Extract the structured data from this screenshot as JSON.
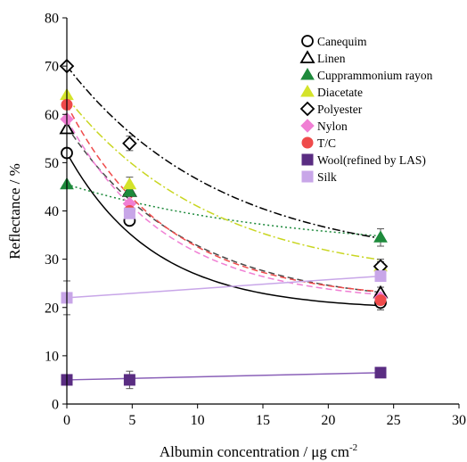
{
  "chart_data": {
    "type": "scatter",
    "xlabel": "Albumin concentration / μg cm",
    "xlabel_sup": "-2",
    "ylabel": "Reflectance / %",
    "xlim": [
      0,
      30
    ],
    "ylim": [
      0,
      80
    ],
    "xticks": [
      0,
      5,
      10,
      15,
      20,
      25,
      30
    ],
    "yticks": [
      0,
      10,
      20,
      30,
      40,
      50,
      60,
      70,
      80
    ],
    "grid": false,
    "legend_position": "top-right",
    "x": [
      0,
      4.8,
      24
    ],
    "series": [
      {
        "name": "Canequim",
        "values": [
          52,
          38,
          21
        ],
        "err": [
          0,
          0,
          1.5
        ],
        "marker": "open-circle",
        "color": "#000000",
        "line_color": "#000000",
        "line_style": "solid",
        "curve": [
          52,
          0.15,
          19.5
        ]
      },
      {
        "name": "Linen",
        "values": [
          57,
          44,
          23
        ],
        "err": [
          0,
          0,
          1.2
        ],
        "marker": "open-triangle",
        "color": "#000000",
        "line_color": "#4a4a4a",
        "line_style": "dashed",
        "curve": [
          57.5,
          0.11,
          20.5
        ]
      },
      {
        "name": "Cupprammonium rayon",
        "values": [
          45.5,
          44,
          34.5
        ],
        "err": [
          0,
          0,
          1.8
        ],
        "marker": "filled-triangle",
        "color": "#1e8a3c",
        "line_color": "#1e8a3c",
        "line_style": "dotted",
        "curve": [
          45.5,
          0.06,
          31.5
        ]
      },
      {
        "name": "Diacetate",
        "values": [
          64,
          45.5,
          28.5
        ],
        "err": [
          0,
          1.5,
          1.0
        ],
        "marker": "filled-triangle",
        "color": "#d4e32a",
        "line_color": "#c9d622",
        "line_style": "dashdot",
        "curve": [
          63.5,
          0.09,
          25.5
        ]
      },
      {
        "name": "Polyester",
        "values": [
          70,
          54,
          28.5
        ],
        "err": [
          0,
          1.5,
          1.5
        ],
        "marker": "open-diamond",
        "color": "#000000",
        "line_color": "#000000",
        "line_style": "dashdot",
        "curve": [
          70,
          0.085,
          29
        ]
      },
      {
        "name": "Nylon",
        "values": [
          59,
          41.5,
          22
        ],
        "err": [
          0,
          0,
          1.0
        ],
        "marker": "filled-diamond",
        "color": "#f07fd4",
        "line_color": "#f07fd4",
        "line_style": "dashed",
        "curve": [
          59,
          0.13,
          21
        ]
      },
      {
        "name": "T/C",
        "values": [
          62,
          40,
          21.5
        ],
        "err": [
          0,
          0,
          1.0
        ],
        "marker": "filled-circle",
        "color": "#ef4b4b",
        "line_color": "#ef4b4b",
        "line_style": "dashed",
        "curve": [
          62,
          0.13,
          21.5
        ]
      },
      {
        "name": "Wool(refined by LAS)",
        "values": [
          5,
          5,
          6.5
        ],
        "err": [
          0,
          1.8,
          0
        ],
        "marker": "filled-square",
        "color": "#5a2d82",
        "line_color": "#8a60b8",
        "line_style": "solid",
        "linear": true
      },
      {
        "name": "Silk",
        "values": [
          22,
          39.5,
          26.5
        ],
        "err": [
          3.5,
          0,
          1.0
        ],
        "marker": "filled-square",
        "color": "#c8a6e8",
        "line_color": "#c8a6e8",
        "line_style": "solid",
        "linear": true
      }
    ]
  },
  "colors": {
    "axis": "#000000",
    "background": "#ffffff"
  }
}
